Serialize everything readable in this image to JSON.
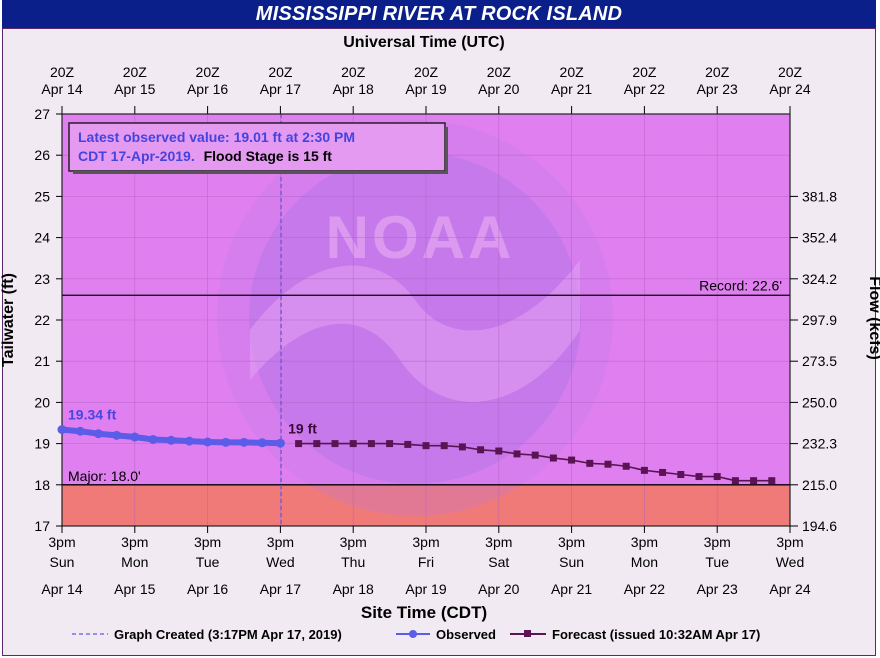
{
  "chart_title": "MISSISSIPPI RIVER AT ROCK ISLAND",
  "top_axis_title": "Universal Time (UTC)",
  "bottom_axis_title": "Site Time (CDT)",
  "colors": {
    "title_bg": "#0b1f8a",
    "plot_bg": "#e080f0",
    "major_flood": "#f07a78",
    "observed": "#5b5ce8",
    "forecast": "#5a1454",
    "record_line": "#000000",
    "annotation_text": "#4444dd"
  },
  "annotation": {
    "line1": "Latest observed value: 19.01 ft at 2:30 PM",
    "line2_blue": "CDT 17-Apr-2019.",
    "line2_black": "Flood Stage is 15 ft"
  },
  "legend": {
    "graph_created": "Graph Created (3:17PM Apr 17, 2019)",
    "observed": "Observed",
    "forecast": "Forecast (issued 10:32AM Apr 17)"
  },
  "chart_data": {
    "type": "line",
    "x_unit": "days since Apr 14 3pm CDT",
    "xlim": [
      0,
      10
    ],
    "ylim": [
      17,
      27
    ],
    "y_left_label": "Tailwater (ft)",
    "y_right_label": "Flow (kcfs)",
    "y_ticks": [
      17,
      18,
      19,
      20,
      21,
      22,
      23,
      24,
      25,
      26,
      27
    ],
    "right_ticks": [
      {
        "stage": 17,
        "label": "194.6"
      },
      {
        "stage": 18,
        "label": "215.0"
      },
      {
        "stage": 19,
        "label": "232.3"
      },
      {
        "stage": 20,
        "label": "250.0"
      },
      {
        "stage": 21,
        "label": "273.5"
      },
      {
        "stage": 22,
        "label": "297.9"
      },
      {
        "stage": 23,
        "label": "324.2"
      },
      {
        "stage": 24,
        "label": "352.4"
      },
      {
        "stage": 25,
        "label": "381.8"
      }
    ],
    "top_ticks": [
      {
        "line1": "20Z",
        "line2": "Apr 14"
      },
      {
        "line1": "20Z",
        "line2": "Apr 15"
      },
      {
        "line1": "20Z",
        "line2": "Apr 16"
      },
      {
        "line1": "20Z",
        "line2": "Apr 17"
      },
      {
        "line1": "20Z",
        "line2": "Apr 18"
      },
      {
        "line1": "20Z",
        "line2": "Apr 19"
      },
      {
        "line1": "20Z",
        "line2": "Apr 20"
      },
      {
        "line1": "20Z",
        "line2": "Apr 21"
      },
      {
        "line1": "20Z",
        "line2": "Apr 22"
      },
      {
        "line1": "20Z",
        "line2": "Apr 23"
      },
      {
        "line1": "20Z",
        "line2": "Apr 24"
      }
    ],
    "bottom_ticks": [
      {
        "time": "3pm",
        "day": "Sun",
        "date": "Apr 14"
      },
      {
        "time": "3pm",
        "day": "Mon",
        "date": "Apr 15"
      },
      {
        "time": "3pm",
        "day": "Tue",
        "date": "Apr 16"
      },
      {
        "time": "3pm",
        "day": "Wed",
        "date": "Apr 17"
      },
      {
        "time": "3pm",
        "day": "Thu",
        "date": "Apr 18"
      },
      {
        "time": "3pm",
        "day": "Fri",
        "date": "Apr 19"
      },
      {
        "time": "3pm",
        "day": "Sat",
        "date": "Apr 20"
      },
      {
        "time": "3pm",
        "day": "Sun",
        "date": "Apr 21"
      },
      {
        "time": "3pm",
        "day": "Mon",
        "date": "Apr 22"
      },
      {
        "time": "3pm",
        "day": "Tue",
        "date": "Apr 23"
      },
      {
        "time": "3pm",
        "day": "Wed",
        "date": "Apr 24"
      }
    ],
    "major_stage": 18.0,
    "major_label": "Major: 18.0'",
    "record_stage": 22.6,
    "record_label": "Record: 22.6'",
    "graph_created_x": 3.01,
    "observed_start_label": "19.34 ft",
    "forecast_start_label": "19 ft",
    "observed": {
      "x": [
        0,
        0.25,
        0.5,
        0.75,
        1.0,
        1.25,
        1.5,
        1.75,
        2.0,
        2.25,
        2.5,
        2.75,
        3.0
      ],
      "y": [
        19.34,
        19.3,
        19.24,
        19.2,
        19.16,
        19.1,
        19.08,
        19.06,
        19.04,
        19.03,
        19.03,
        19.02,
        19.01
      ]
    },
    "forecast": {
      "x": [
        3.25,
        3.5,
        3.75,
        4.0,
        4.25,
        4.5,
        4.75,
        5.0,
        5.25,
        5.5,
        5.75,
        6.0,
        6.25,
        6.5,
        6.75,
        7.0,
        7.25,
        7.5,
        7.75,
        8.0,
        8.25,
        8.5,
        8.75,
        9.0,
        9.25,
        9.5,
        9.75
      ],
      "y": [
        19.0,
        19.0,
        19.0,
        19.0,
        19.0,
        19.0,
        18.98,
        18.95,
        18.95,
        18.92,
        18.85,
        18.82,
        18.75,
        18.72,
        18.65,
        18.6,
        18.52,
        18.5,
        18.45,
        18.35,
        18.3,
        18.25,
        18.2,
        18.2,
        18.1,
        18.1,
        18.1
      ]
    }
  }
}
